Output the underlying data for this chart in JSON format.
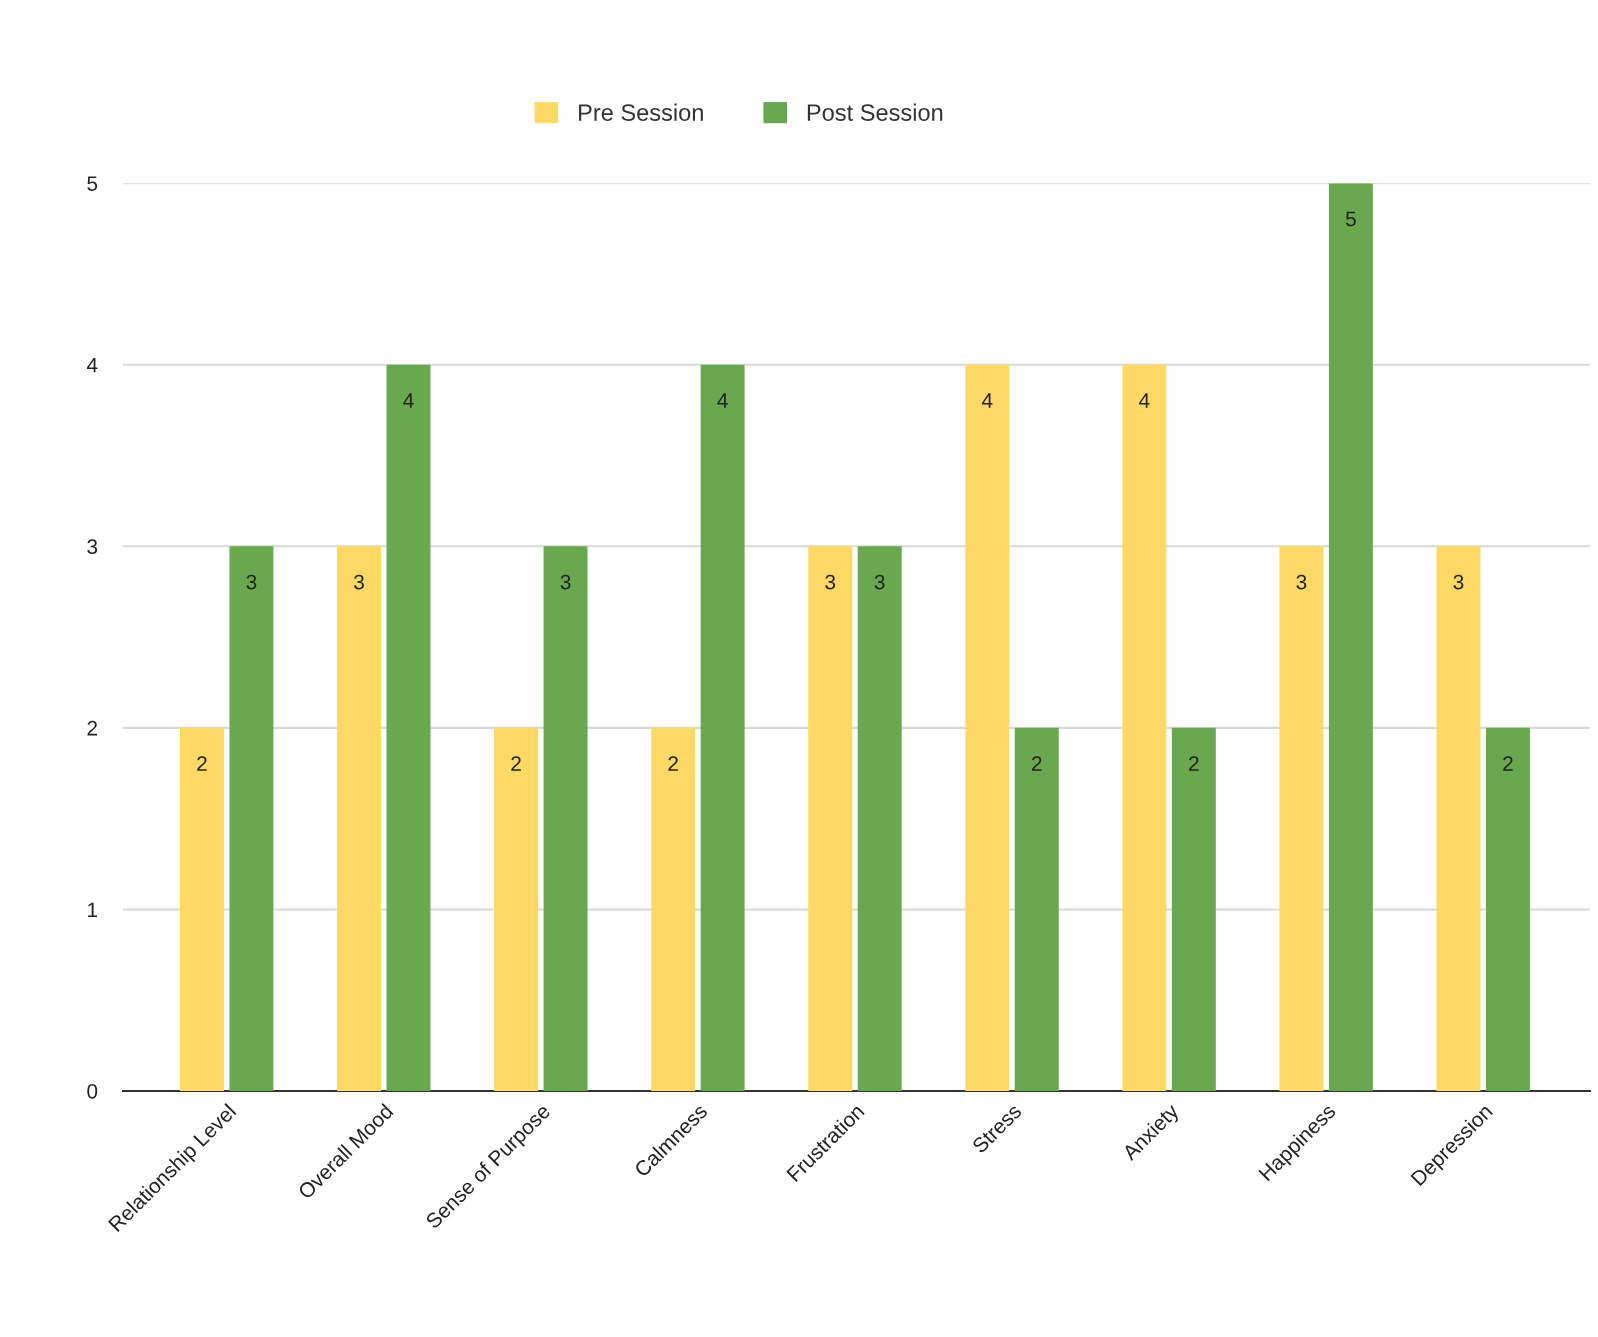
{
  "chart_data": {
    "type": "bar",
    "categories": [
      "Relationship Level",
      "Overall Mood",
      "Sense of Purpose",
      "Calmness",
      "Frustration",
      "Stress",
      "Anxiety",
      "Happiness",
      "Depression"
    ],
    "series": [
      {
        "name": "Pre Session",
        "color": "#ffd966",
        "values": [
          2,
          3,
          2,
          2,
          3,
          4,
          4,
          3,
          3
        ]
      },
      {
        "name": "Post Session",
        "color": "#6aa84f",
        "values": [
          3,
          4,
          3,
          4,
          3,
          2,
          2,
          5,
          2
        ]
      }
    ],
    "ylim": [
      0,
      5
    ],
    "yticks": [
      0,
      1,
      2,
      3,
      4,
      5
    ],
    "grid": "y",
    "legend": "top",
    "data_labels": true
  }
}
